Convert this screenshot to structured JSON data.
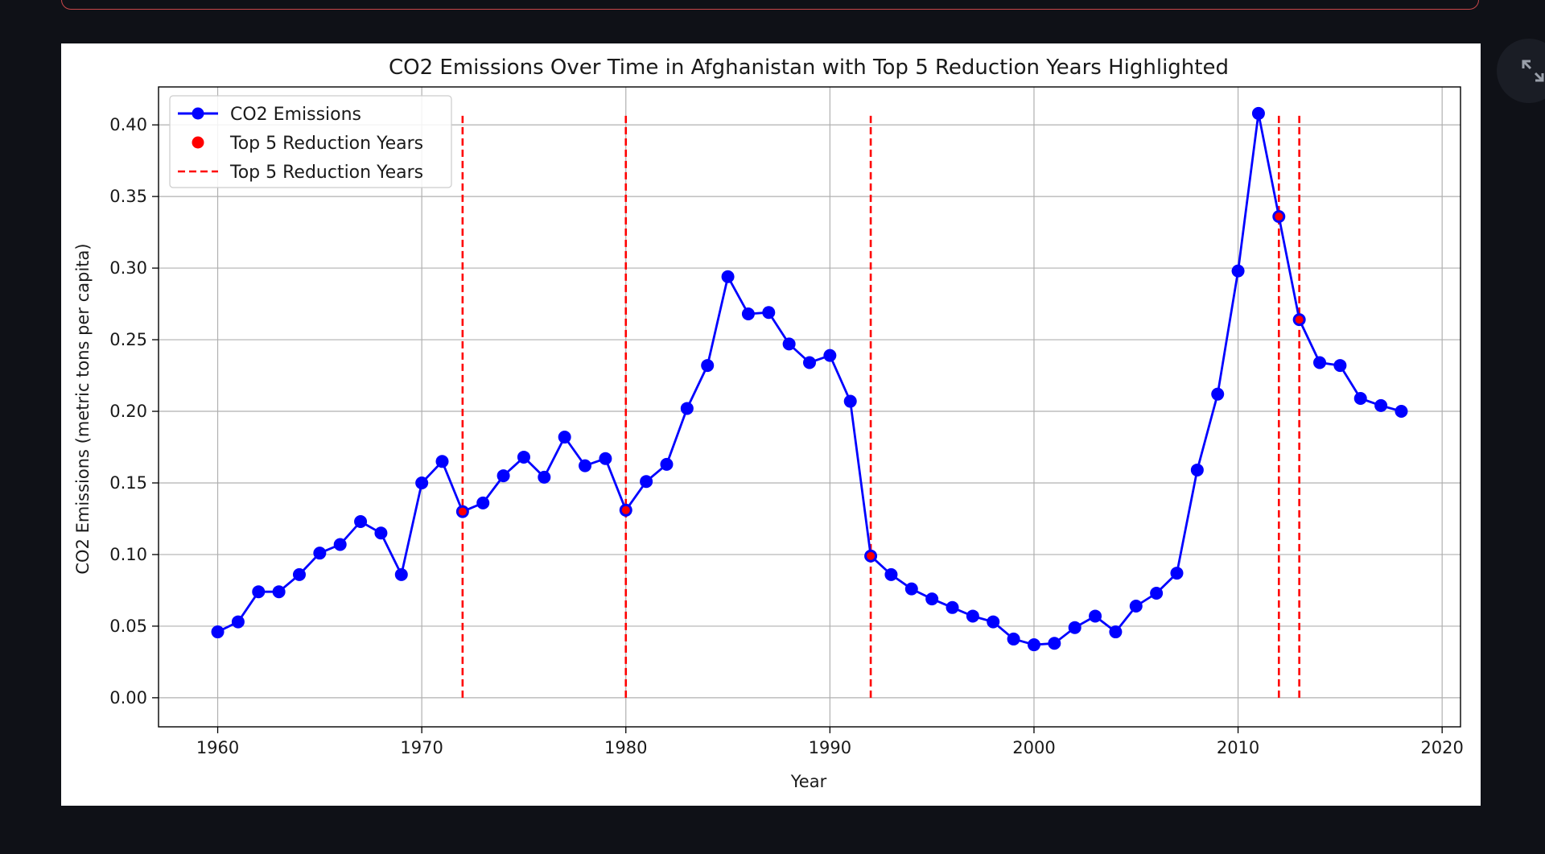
{
  "app": {
    "expand_icon": "expand-icon"
  },
  "chart_data": {
    "type": "line",
    "title": "CO2 Emissions Over Time in Afghanistan with Top 5 Reduction Years Highlighted",
    "xlabel": "Year",
    "ylabel": "CO2 Emissions (metric tons per capita)",
    "xlim": [
      1957.1,
      2020.9
    ],
    "ylim": [
      -0.0203,
      0.4265
    ],
    "xticks": [
      1960,
      1970,
      1980,
      1990,
      2000,
      2010,
      2020
    ],
    "yticks": [
      0.0,
      0.05,
      0.1,
      0.15,
      0.2,
      0.25,
      0.3,
      0.35,
      0.4
    ],
    "ytick_labels": [
      "0.00",
      "0.05",
      "0.10",
      "0.15",
      "0.20",
      "0.25",
      "0.30",
      "0.35",
      "0.40"
    ],
    "grid": true,
    "legend_position": "upper-left",
    "series": [
      {
        "name": "CO2 Emissions",
        "color": "#0000ff",
        "marker": "circle",
        "x": [
          1960,
          1961,
          1962,
          1963,
          1964,
          1965,
          1966,
          1967,
          1968,
          1969,
          1970,
          1971,
          1972,
          1973,
          1974,
          1975,
          1976,
          1977,
          1978,
          1979,
          1980,
          1981,
          1982,
          1983,
          1984,
          1985,
          1986,
          1987,
          1988,
          1989,
          1990,
          1991,
          1992,
          1993,
          1994,
          1995,
          1996,
          1997,
          1998,
          1999,
          2000,
          2001,
          2002,
          2003,
          2004,
          2005,
          2006,
          2007,
          2008,
          2009,
          2010,
          2011,
          2012,
          2013,
          2014,
          2015,
          2016,
          2017,
          2018
        ],
        "y": [
          0.046,
          0.053,
          0.074,
          0.074,
          0.086,
          0.101,
          0.107,
          0.123,
          0.115,
          0.086,
          0.15,
          0.165,
          0.13,
          0.136,
          0.155,
          0.168,
          0.154,
          0.182,
          0.162,
          0.167,
          0.131,
          0.151,
          0.163,
          0.202,
          0.232,
          0.294,
          0.268,
          0.269,
          0.247,
          0.234,
          0.239,
          0.207,
          0.099,
          0.086,
          0.076,
          0.069,
          0.063,
          0.057,
          0.053,
          0.041,
          0.037,
          0.038,
          0.049,
          0.057,
          0.046,
          0.064,
          0.073,
          0.087,
          0.159,
          0.212,
          0.298,
          0.408,
          0.336,
          0.264,
          0.234,
          0.232,
          0.209,
          0.204,
          0.2
        ]
      },
      {
        "name": "Top 5 Reduction Years",
        "type": "scatter",
        "color": "#ff0000",
        "x": [
          1972,
          1980,
          1992,
          2012,
          2013
        ],
        "y": [
          0.13,
          0.131,
          0.099,
          0.336,
          0.264
        ]
      },
      {
        "name": "Top 5 Reduction Years",
        "type": "vline",
        "color": "#ff0000",
        "style": "dashed",
        "x": [
          1972,
          1980,
          1992,
          2012,
          2013
        ],
        "y_range": [
          0.0,
          0.408
        ]
      }
    ]
  }
}
